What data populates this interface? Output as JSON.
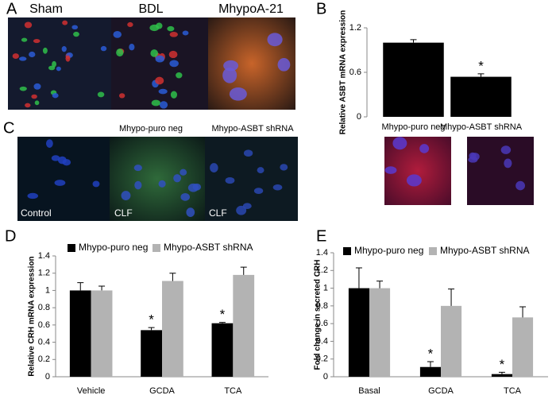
{
  "panel_labels": [
    "A",
    "B",
    "C",
    "D",
    "E"
  ],
  "image_labels": {
    "row_a": [
      "Sham",
      "BDL",
      "MhypoA-21"
    ],
    "row_c_headers": [
      "Mhypo-puro neg",
      "Mhypo-ASBT shRNA"
    ],
    "row_c_inner": [
      "Control",
      "CLF",
      "CLF"
    ]
  },
  "chart_data": [
    {
      "type": "bar",
      "ylabel": "Relative ASBT mRNA expression",
      "categories": [
        "Mhypo-puro neg",
        "Mhypo-ASBT shRNA"
      ],
      "values": [
        1.0,
        0.54
      ],
      "errors": [
        0.04,
        0.04
      ],
      "significance": [
        null,
        "*"
      ],
      "color": "#000000",
      "ylim": [
        0,
        1.2
      ],
      "yticks": [
        0,
        0.6,
        1.2
      ]
    },
    {
      "type": "bar",
      "ylabel": "Relative CRH mRNA expression",
      "categories": [
        "Vehicle",
        "GCDA",
        "TCA"
      ],
      "series": [
        {
          "name": "Mhypo-puro neg",
          "color": "#000000",
          "values": [
            1.0,
            0.54,
            0.62
          ],
          "errors": [
            0.09,
            0.03,
            0.01
          ],
          "significance": [
            null,
            "*",
            "*"
          ]
        },
        {
          "name": "Mhypo-ASBT shRNA",
          "color": "#b3b3b3",
          "values": [
            1.0,
            1.11,
            1.18
          ],
          "errors": [
            0.05,
            0.09,
            0.09
          ]
        }
      ],
      "ylim": [
        0,
        1.4
      ],
      "yticks": [
        0,
        0.2,
        0.4,
        0.6,
        0.8,
        1,
        1.2,
        1.4
      ]
    },
    {
      "type": "bar",
      "ylabel": "Fold change in secreted CRH",
      "categories": [
        "Basal",
        "GCDA",
        "TCA"
      ],
      "series": [
        {
          "name": "Mhypo-puro neg",
          "color": "#000000",
          "values": [
            1.0,
            0.11,
            0.03
          ],
          "errors": [
            0.23,
            0.06,
            0.02
          ],
          "significance": [
            null,
            "*",
            "*"
          ]
        },
        {
          "name": "Mhypo-ASBT shRNA",
          "color": "#b3b3b3",
          "values": [
            1.0,
            0.8,
            0.67
          ],
          "errors": [
            0.08,
            0.19,
            0.12
          ]
        }
      ],
      "ylim": [
        0,
        1.4
      ],
      "yticks": [
        0,
        0.2,
        0.4,
        0.6,
        0.8,
        1,
        1.2,
        1.4
      ]
    }
  ]
}
